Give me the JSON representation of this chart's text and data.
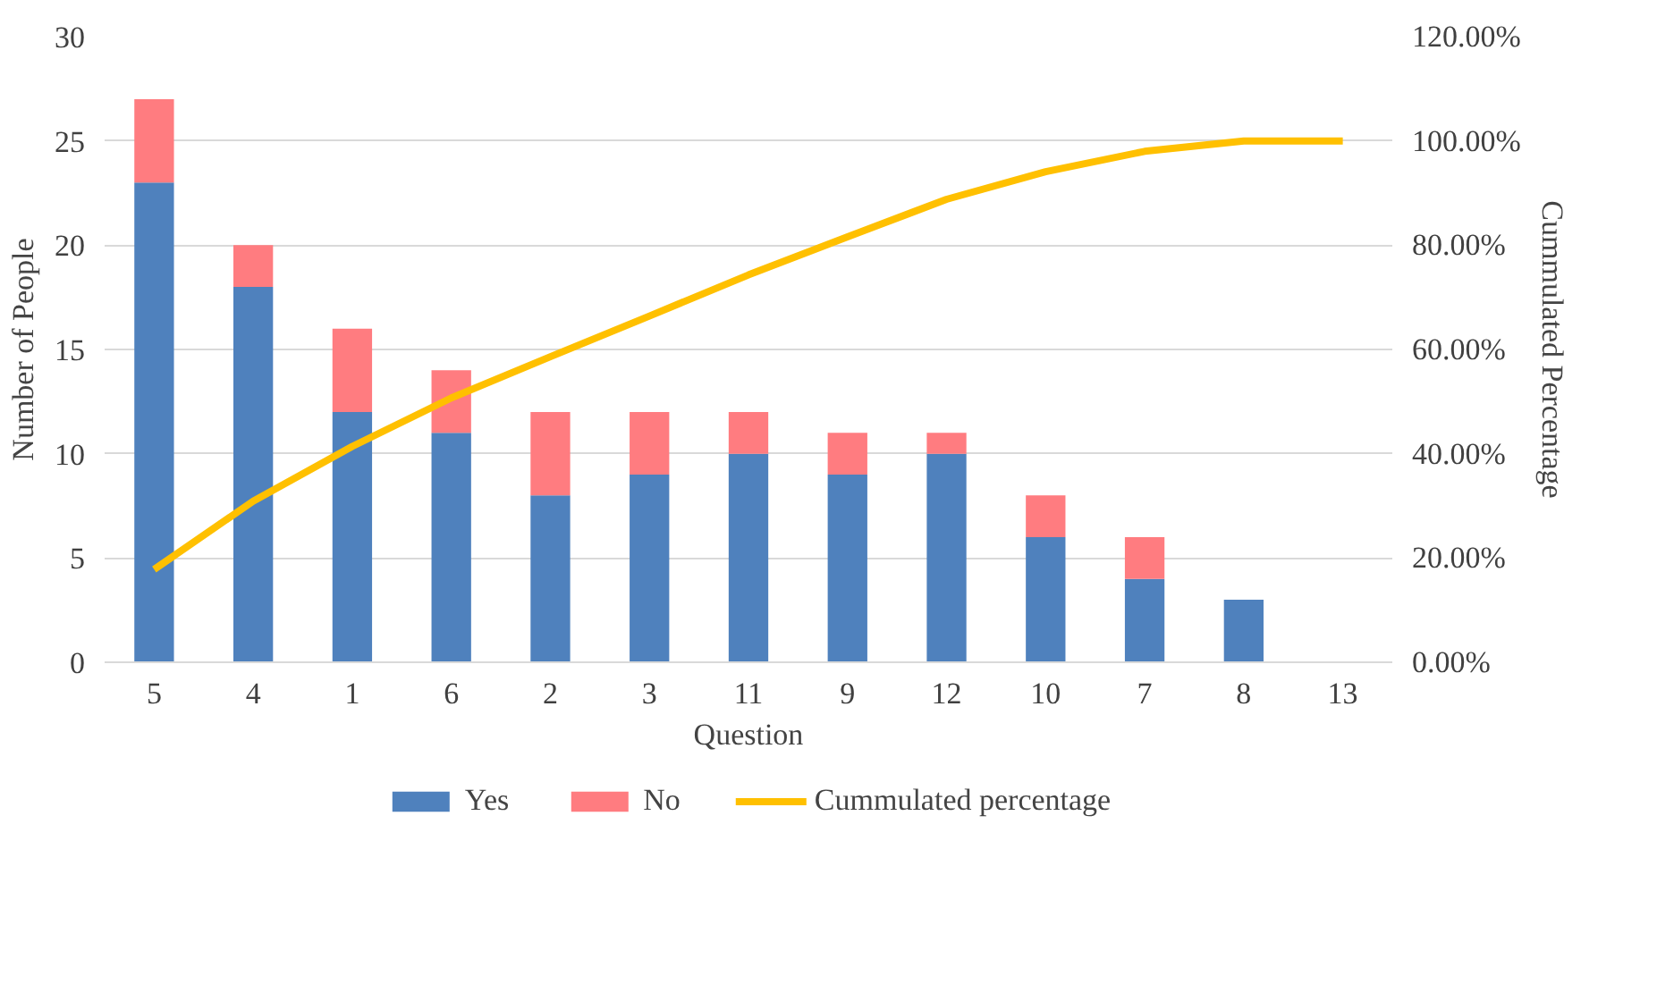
{
  "chart_data": {
    "type": "bar",
    "stacked": true,
    "xlabel": "Question",
    "ylabel": "Number of People",
    "y2label": "Cummulated Percentage",
    "categories": [
      "5",
      "4",
      "1",
      "6",
      "2",
      "3",
      "11",
      "9",
      "12",
      "10",
      "7",
      "8",
      "13"
    ],
    "series": [
      {
        "name": "Yes",
        "color": "#4f81bd",
        "values": [
          23,
          18,
          12,
          11,
          8,
          9,
          10,
          9,
          10,
          6,
          4,
          3,
          0
        ]
      },
      {
        "name": "No",
        "color": "#ff7c80",
        "values": [
          4,
          2,
          4,
          3,
          4,
          3,
          2,
          2,
          1,
          2,
          2,
          0,
          0
        ]
      },
      {
        "name": "Cummulated percentage",
        "type": "line",
        "axis": "y2",
        "color": "#ffc000",
        "values": [
          17.8,
          30.9,
          41.4,
          50.7,
          58.6,
          66.4,
          74.3,
          81.6,
          88.8,
          94.1,
          98.0,
          100,
          100
        ]
      }
    ],
    "ylim": [
      0,
      30
    ],
    "yticks": [
      0,
      5,
      10,
      15,
      20,
      25,
      30
    ],
    "y2lim": [
      0,
      120
    ],
    "y2ticks": [
      {
        "value": 0,
        "label": "0.00%"
      },
      {
        "value": 20,
        "label": "20.00%"
      },
      {
        "value": 40,
        "label": "40.00%"
      },
      {
        "value": 60,
        "label": "60.00%"
      },
      {
        "value": 80,
        "label": "80.00%"
      },
      {
        "value": 100,
        "label": "100.00%"
      },
      {
        "value": 120,
        "label": "120.00%"
      }
    ],
    "grid": "y",
    "legend": "bottom"
  }
}
